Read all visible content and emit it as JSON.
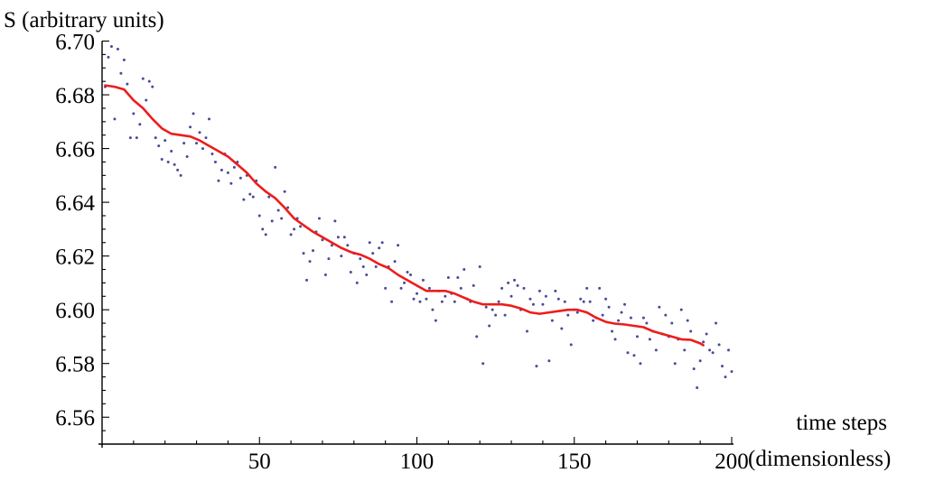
{
  "chart_data": {
    "type": "scatter",
    "title": "",
    "ylabel": "S (arbitrary units)",
    "xlabel_line1": "time steps",
    "xlabel_line2": "(dimensionless)",
    "xlim": [
      0,
      200
    ],
    "ylim": [
      6.55,
      6.7
    ],
    "x_ticks": [
      50,
      100,
      150,
      200
    ],
    "x_tick_labels": [
      "50",
      "100",
      "150",
      "200"
    ],
    "y_ticks": [
      6.56,
      6.58,
      6.6,
      6.62,
      6.64,
      6.66,
      6.68,
      6.7
    ],
    "y_tick_labels": [
      "6.56",
      "6.58",
      "6.60",
      "6.62",
      "6.64",
      "6.66",
      "6.68",
      "6.70"
    ],
    "grid": false,
    "colors": {
      "points": "#4a4a9a",
      "smooth_line": "#ee1c1c"
    },
    "series": [
      {
        "kind": "points",
        "points": [
          [
            1,
            6.683
          ],
          [
            2,
            6.694
          ],
          [
            3,
            6.698
          ],
          [
            4,
            6.671
          ],
          [
            5,
            6.697
          ],
          [
            6,
            6.688
          ],
          [
            7,
            6.693
          ],
          [
            8,
            6.684
          ],
          [
            9,
            6.664
          ],
          [
            10,
            6.673
          ],
          [
            11,
            6.664
          ],
          [
            12,
            6.669
          ],
          [
            13,
            6.686
          ],
          [
            14,
            6.678
          ],
          [
            15,
            6.685
          ],
          [
            16,
            6.683
          ],
          [
            17,
            6.664
          ],
          [
            18,
            6.661
          ],
          [
            19,
            6.656
          ],
          [
            20,
            6.663
          ],
          [
            21,
            6.655
          ],
          [
            22,
            6.659
          ],
          [
            23,
            6.654
          ],
          [
            24,
            6.652
          ],
          [
            25,
            6.65
          ],
          [
            26,
            6.662
          ],
          [
            27,
            6.657
          ],
          [
            28,
            6.668
          ],
          [
            29,
            6.673
          ],
          [
            30,
            6.662
          ],
          [
            31,
            6.666
          ],
          [
            32,
            6.66
          ],
          [
            33,
            6.664
          ],
          [
            34,
            6.671
          ],
          [
            35,
            6.658
          ],
          [
            36,
            6.655
          ],
          [
            37,
            6.648
          ],
          [
            38,
            6.652
          ],
          [
            39,
            6.658
          ],
          [
            40,
            6.651
          ],
          [
            41,
            6.647
          ],
          [
            42,
            6.653
          ],
          [
            43,
            6.655
          ],
          [
            44,
            6.649
          ],
          [
            45,
            6.641
          ],
          [
            46,
            6.65
          ],
          [
            47,
            6.643
          ],
          [
            48,
            6.642
          ],
          [
            49,
            6.648
          ],
          [
            50,
            6.635
          ],
          [
            51,
            6.63
          ],
          [
            52,
            6.628
          ],
          [
            53,
            6.642
          ],
          [
            54,
            6.633
          ],
          [
            55,
            6.653
          ],
          [
            56,
            6.637
          ],
          [
            57,
            6.634
          ],
          [
            58,
            6.644
          ],
          [
            59,
            6.638
          ],
          [
            60,
            6.628
          ],
          [
            61,
            6.63
          ],
          [
            62,
            6.634
          ],
          [
            63,
            6.631
          ],
          [
            64,
            6.621
          ],
          [
            65,
            6.611
          ],
          [
            66,
            6.618
          ],
          [
            67,
            6.622
          ],
          [
            68,
            6.629
          ],
          [
            69,
            6.634
          ],
          [
            70,
            6.626
          ],
          [
            71,
            6.613
          ],
          [
            72,
            6.619
          ],
          [
            73,
            6.624
          ],
          [
            74,
            6.633
          ],
          [
            75,
            6.627
          ],
          [
            76,
            6.62
          ],
          [
            77,
            6.627
          ],
          [
            78,
            6.624
          ],
          [
            79,
            6.614
          ],
          [
            80,
            6.621
          ],
          [
            81,
            6.61
          ],
          [
            82,
            6.619
          ],
          [
            83,
            6.616
          ],
          [
            84,
            6.613
          ],
          [
            85,
            6.625
          ],
          [
            86,
            6.621
          ],
          [
            87,
            6.616
          ],
          [
            88,
            6.623
          ],
          [
            89,
            6.625
          ],
          [
            90,
            6.608
          ],
          [
            91,
            6.616
          ],
          [
            92,
            6.603
          ],
          [
            93,
            6.618
          ],
          [
            94,
            6.624
          ],
          [
            95,
            6.608
          ],
          [
            96,
            6.61
          ],
          [
            97,
            6.614
          ],
          [
            98,
            6.613
          ],
          [
            99,
            6.604
          ],
          [
            100,
            6.606
          ],
          [
            101,
            6.603
          ],
          [
            102,
            6.611
          ],
          [
            103,
            6.604
          ],
          [
            104,
            6.608
          ],
          [
            105,
            6.6
          ],
          [
            106,
            6.596
          ],
          [
            107,
            6.607
          ],
          [
            108,
            6.603
          ],
          [
            109,
            6.605
          ],
          [
            110,
            6.612
          ],
          [
            111,
            6.606
          ],
          [
            112,
            6.603
          ],
          [
            113,
            6.612
          ],
          [
            114,
            6.608
          ],
          [
            115,
            6.615
          ],
          [
            116,
            6.604
          ],
          [
            117,
            6.603
          ],
          [
            118,
            6.609
          ],
          [
            119,
            6.59
          ],
          [
            120,
            6.616
          ],
          [
            121,
            6.58
          ],
          [
            122,
            6.601
          ],
          [
            123,
            6.594
          ],
          [
            124,
            6.6
          ],
          [
            125,
            6.598
          ],
          [
            126,
            6.603
          ],
          [
            127,
            6.608
          ],
          [
            128,
            6.598
          ],
          [
            129,
            6.61
          ],
          [
            130,
            6.605
          ],
          [
            131,
            6.611
          ],
          [
            132,
            6.609
          ],
          [
            133,
            6.6
          ],
          [
            134,
            6.608
          ],
          [
            135,
            6.592
          ],
          [
            136,
            6.604
          ],
          [
            137,
            6.602
          ],
          [
            138,
            6.579
          ],
          [
            139,
            6.607
          ],
          [
            140,
            6.602
          ],
          [
            141,
            6.605
          ],
          [
            142,
            6.581
          ],
          [
            143,
            6.596
          ],
          [
            144,
            6.607
          ],
          [
            145,
            6.604
          ],
          [
            146,
            6.593
          ],
          [
            147,
            6.603
          ],
          [
            148,
            6.598
          ],
          [
            149,
            6.587
          ],
          [
            150,
            6.6
          ],
          [
            151,
            6.599
          ],
          [
            152,
            6.604
          ],
          [
            153,
            6.603
          ],
          [
            154,
            6.608
          ],
          [
            155,
            6.603
          ],
          [
            156,
            6.596
          ],
          [
            157,
            6.597
          ],
          [
            158,
            6.608
          ],
          [
            159,
            6.598
          ],
          [
            160,
            6.604
          ],
          [
            161,
            6.601
          ],
          [
            162,
            6.592
          ],
          [
            163,
            6.589
          ],
          [
            164,
            6.596
          ],
          [
            165,
            6.599
          ],
          [
            166,
            6.602
          ],
          [
            167,
            6.584
          ],
          [
            168,
            6.597
          ],
          [
            169,
            6.583
          ],
          [
            170,
            6.59
          ],
          [
            171,
            6.58
          ],
          [
            172,
            6.597
          ],
          [
            173,
            6.595
          ],
          [
            174,
            6.589
          ],
          [
            175,
            6.592
          ],
          [
            176,
            6.585
          ],
          [
            177,
            6.601
          ],
          [
            178,
            6.591
          ],
          [
            179,
            6.598
          ],
          [
            180,
            6.59
          ],
          [
            181,
            6.595
          ],
          [
            182,
            6.58
          ],
          [
            183,
            6.589
          ],
          [
            184,
            6.6
          ],
          [
            185,
            6.585
          ],
          [
            186,
            6.596
          ],
          [
            187,
            6.592
          ],
          [
            188,
            6.578
          ],
          [
            189,
            6.571
          ],
          [
            190,
            6.581
          ],
          [
            191,
            6.588
          ],
          [
            192,
            6.591
          ],
          [
            193,
            6.585
          ],
          [
            194,
            6.584
          ],
          [
            195,
            6.595
          ],
          [
            196,
            6.587
          ],
          [
            197,
            6.579
          ],
          [
            198,
            6.575
          ],
          [
            199,
            6.585
          ],
          [
            200,
            6.577
          ]
        ]
      },
      {
        "kind": "line",
        "points": [
          [
            1,
            6.6835
          ],
          [
            4,
            6.683
          ],
          [
            7,
            6.682
          ],
          [
            10,
            6.678
          ],
          [
            13,
            6.675
          ],
          [
            16,
            6.671
          ],
          [
            19,
            6.6675
          ],
          [
            22,
            6.6655
          ],
          [
            25,
            6.665
          ],
          [
            28,
            6.6645
          ],
          [
            31,
            6.663
          ],
          [
            34,
            6.661
          ],
          [
            37,
            6.659
          ],
          [
            40,
            6.657
          ],
          [
            43,
            6.654
          ],
          [
            46,
            6.651
          ],
          [
            49,
            6.647
          ],
          [
            52,
            6.644
          ],
          [
            55,
            6.6415
          ],
          [
            58,
            6.638
          ],
          [
            61,
            6.634
          ],
          [
            64,
            6.6315
          ],
          [
            67,
            6.629
          ],
          [
            70,
            6.627
          ],
          [
            73,
            6.625
          ],
          [
            76,
            6.623
          ],
          [
            79,
            6.6215
          ],
          [
            82,
            6.6205
          ],
          [
            85,
            6.619
          ],
          [
            88,
            6.617
          ],
          [
            91,
            6.6155
          ],
          [
            94,
            6.613
          ],
          [
            97,
            6.611
          ],
          [
            100,
            6.609
          ],
          [
            103,
            6.607
          ],
          [
            106,
            6.607
          ],
          [
            109,
            6.607
          ],
          [
            112,
            6.606
          ],
          [
            115,
            6.6045
          ],
          [
            118,
            6.603
          ],
          [
            121,
            6.602
          ],
          [
            124,
            6.602
          ],
          [
            127,
            6.602
          ],
          [
            130,
            6.6015
          ],
          [
            133,
            6.6005
          ],
          [
            136,
            6.599
          ],
          [
            139,
            6.5985
          ],
          [
            142,
            6.599
          ],
          [
            145,
            6.5995
          ],
          [
            148,
            6.6
          ],
          [
            151,
            6.6
          ],
          [
            154,
            6.599
          ],
          [
            157,
            6.597
          ],
          [
            160,
            6.5955
          ],
          [
            163,
            6.5948
          ],
          [
            166,
            6.5945
          ],
          [
            169,
            6.594
          ],
          [
            172,
            6.5935
          ],
          [
            175,
            6.592
          ],
          [
            178,
            6.591
          ],
          [
            181,
            6.59
          ],
          [
            184,
            6.589
          ],
          [
            187,
            6.5888
          ],
          [
            190,
            6.5875
          ],
          [
            191,
            6.5868
          ]
        ]
      }
    ]
  }
}
